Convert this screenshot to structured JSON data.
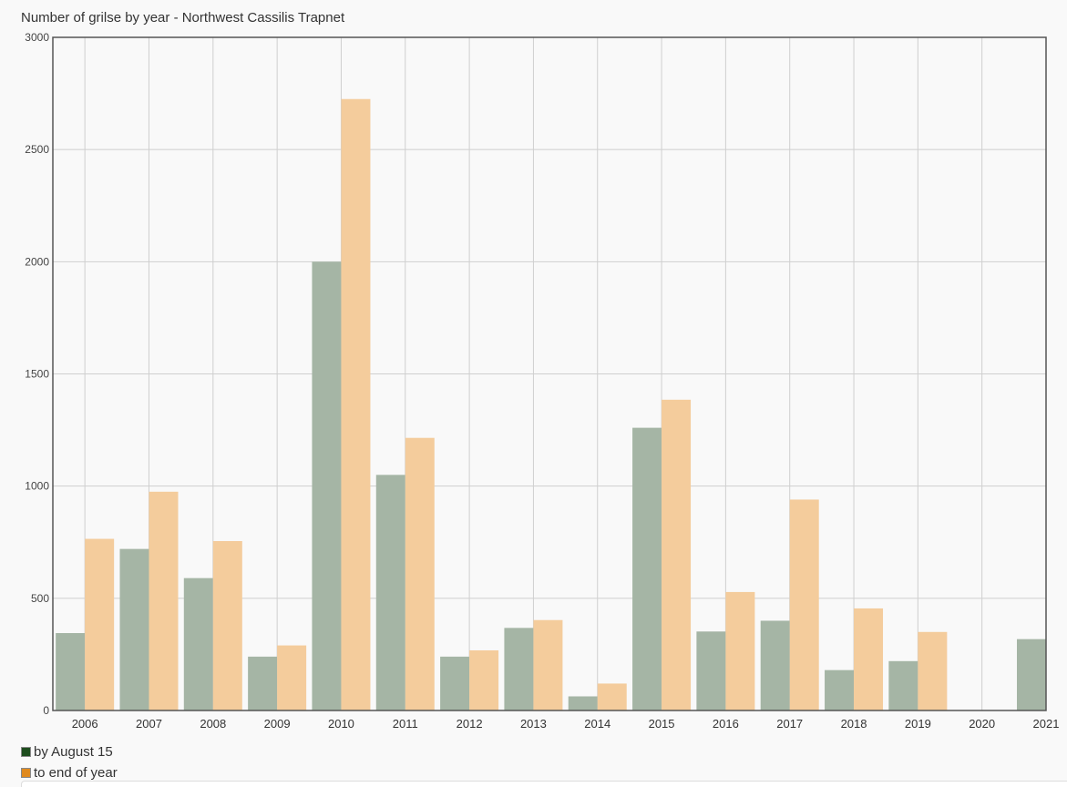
{
  "chart_data": {
    "type": "bar",
    "title": "Number of grilse by year - Northwest Cassilis Trapnet",
    "xlabel": "",
    "ylabel": "",
    "ylim": [
      0,
      3000
    ],
    "y_ticks": [
      0,
      500,
      1000,
      1500,
      2000,
      2500,
      3000
    ],
    "categories": [
      "2006",
      "2007",
      "2008",
      "2009",
      "2010",
      "2011",
      "2012",
      "2013",
      "2014",
      "2015",
      "2016",
      "2017",
      "2018",
      "2019",
      "2020",
      "2021"
    ],
    "series": [
      {
        "name": "by August 15",
        "color": "#a5b5a5",
        "legend_color": "#1e4d1e",
        "values": [
          345,
          720,
          590,
          240,
          2000,
          1050,
          240,
          368,
          63,
          1260,
          352,
          400,
          180,
          220,
          0,
          318
        ]
      },
      {
        "name": "to end of year",
        "color": "#f4cc9c",
        "legend_color": "#e08a1e",
        "values": [
          765,
          975,
          755,
          290,
          2725,
          1215,
          268,
          403,
          120,
          1385,
          528,
          940,
          455,
          350,
          0,
          null
        ]
      }
    ],
    "grid": true,
    "legend_position": "bottom-left"
  }
}
